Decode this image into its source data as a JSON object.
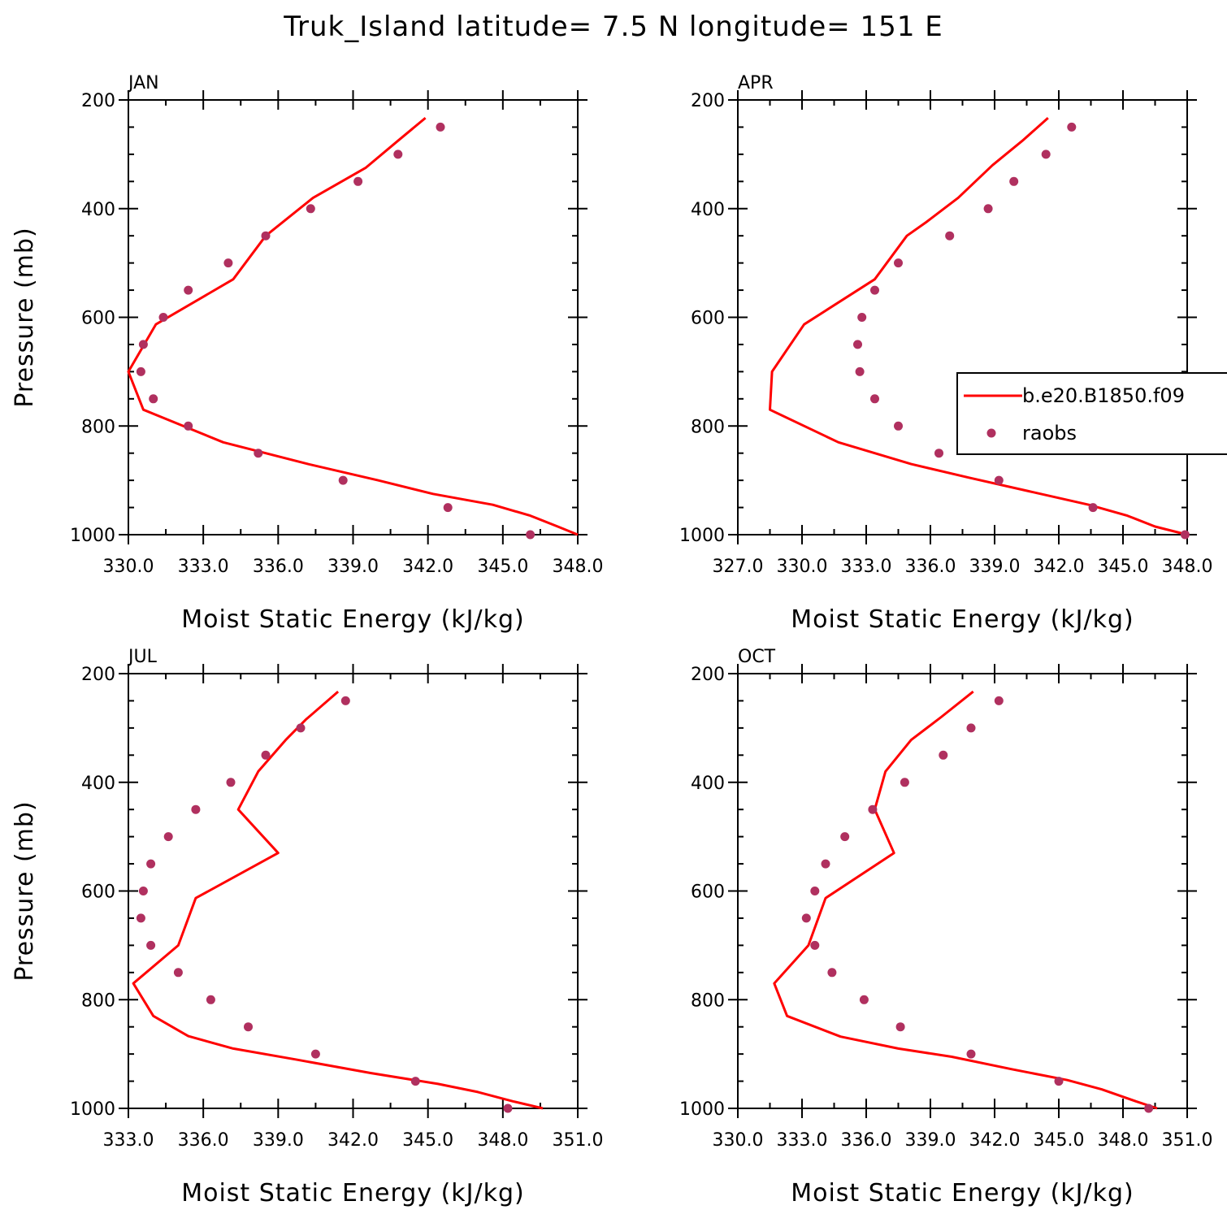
{
  "title": "Truk_Island  latitude= 7.5 N longitude= 151 E",
  "colors": {
    "model_line": "#ff0000",
    "obs_marker": "#b0305f",
    "axes": "#000000"
  },
  "legend": {
    "entries": [
      "b.e20.B1850.f09",
      "raobs"
    ]
  },
  "chart_data": [
    {
      "type": "line",
      "panel": "JAN",
      "xlabel": "Moist Static Energy (kJ/kg)",
      "ylabel": "Pressure (mb)",
      "xlim": [
        330,
        348
      ],
      "ylim": [
        1000,
        200
      ],
      "xticks": [
        330,
        333,
        336,
        339,
        342,
        345,
        348
      ],
      "xtick_labels": [
        "330.0",
        "333.0",
        "336.0",
        "339.0",
        "342.0",
        "345.0",
        "348.0"
      ],
      "yticks": [
        200,
        400,
        600,
        800,
        1000
      ],
      "series": [
        {
          "name": "b.e20.B1850.f09",
          "points": [
            [
              341.9,
              233
            ],
            [
              340.8,
              275
            ],
            [
              339.5,
              325
            ],
            [
              337.4,
              380
            ],
            [
              335.5,
              450
            ],
            [
              334.2,
              530
            ],
            [
              331.1,
              613
            ],
            [
              330.0,
              700
            ],
            [
              330.6,
              770
            ],
            [
              333.8,
              830
            ],
            [
              337.2,
              870
            ],
            [
              340.0,
              900
            ],
            [
              342.2,
              925
            ],
            [
              344.6,
              945
            ],
            [
              346.1,
              965
            ],
            [
              347.2,
              985
            ],
            [
              348.0,
              1000
            ]
          ]
        },
        {
          "name": "raobs",
          "points": [
            [
              342.5,
              250
            ],
            [
              340.8,
              300
            ],
            [
              339.2,
              350
            ],
            [
              337.3,
              400
            ],
            [
              335.5,
              450
            ],
            [
              334.0,
              500
            ],
            [
              332.4,
              550
            ],
            [
              331.4,
              600
            ],
            [
              330.6,
              650
            ],
            [
              330.5,
              700
            ],
            [
              331.0,
              750
            ],
            [
              332.4,
              800
            ],
            [
              335.2,
              850
            ],
            [
              338.6,
              900
            ],
            [
              342.8,
              950
            ],
            [
              346.1,
              1000
            ]
          ]
        }
      ]
    },
    {
      "type": "line",
      "panel": "APR",
      "xlabel": "Moist Static Energy (kJ/kg)",
      "ylabel": "",
      "xlim": [
        327,
        348
      ],
      "ylim": [
        1000,
        200
      ],
      "xticks": [
        327,
        330,
        333,
        336,
        339,
        342,
        345,
        348
      ],
      "xtick_labels": [
        "327.0",
        "330.0",
        "333.0",
        "336.0",
        "339.0",
        "342.0",
        "345.0",
        "348.0"
      ],
      "yticks": [
        200,
        400,
        600,
        800,
        1000
      ],
      "series": [
        {
          "name": "b.e20.B1850.f09",
          "points": [
            [
              341.5,
              233
            ],
            [
              340.3,
              275
            ],
            [
              338.9,
              320
            ],
            [
              337.3,
              380
            ],
            [
              335.8,
              425
            ],
            [
              334.9,
              450
            ],
            [
              333.4,
              530
            ],
            [
              330.1,
              613
            ],
            [
              328.6,
              700
            ],
            [
              328.5,
              770
            ],
            [
              331.7,
              830
            ],
            [
              335.1,
              870
            ],
            [
              337.8,
              895
            ],
            [
              340.6,
              920
            ],
            [
              343.4,
              945
            ],
            [
              345.2,
              965
            ],
            [
              346.5,
              985
            ],
            [
              348.0,
              1000
            ]
          ]
        },
        {
          "name": "raobs",
          "points": [
            [
              342.6,
              250
            ],
            [
              341.4,
              300
            ],
            [
              339.9,
              350
            ],
            [
              338.7,
              400
            ],
            [
              336.9,
              450
            ],
            [
              334.5,
              500
            ],
            [
              333.4,
              550
            ],
            [
              332.8,
              600
            ],
            [
              332.6,
              650
            ],
            [
              332.7,
              700
            ],
            [
              333.4,
              750
            ],
            [
              334.5,
              800
            ],
            [
              336.4,
              850
            ],
            [
              339.2,
              900
            ],
            [
              343.6,
              950
            ],
            [
              347.9,
              1000
            ]
          ]
        }
      ]
    },
    {
      "type": "line",
      "panel": "JUL",
      "xlabel": "Moist Static Energy (kJ/kg)",
      "ylabel": "Pressure (mb)",
      "xlim": [
        333,
        351
      ],
      "ylim": [
        1000,
        200
      ],
      "xticks": [
        333,
        336,
        339,
        342,
        345,
        348,
        351
      ],
      "xtick_labels": [
        "333.0",
        "336.0",
        "339.0",
        "342.0",
        "345.0",
        "348.0",
        "351.0"
      ],
      "yticks": [
        200,
        400,
        600,
        800,
        1000
      ],
      "series": [
        {
          "name": "b.e20.B1850.f09",
          "points": [
            [
              341.4,
              233
            ],
            [
              340.1,
              285
            ],
            [
              339.3,
              322
            ],
            [
              338.2,
              380
            ],
            [
              337.4,
              450
            ],
            [
              339.0,
              530
            ],
            [
              335.7,
              613
            ],
            [
              335.0,
              700
            ],
            [
              333.2,
              770
            ],
            [
              334.0,
              830
            ],
            [
              335.4,
              867
            ],
            [
              337.2,
              890
            ],
            [
              339.7,
              910
            ],
            [
              342.7,
              935
            ],
            [
              345.4,
              955
            ],
            [
              347.0,
              970
            ],
            [
              348.4,
              987
            ],
            [
              349.6,
              1000
            ]
          ]
        },
        {
          "name": "raobs",
          "points": [
            [
              341.7,
              250
            ],
            [
              339.9,
              300
            ],
            [
              338.5,
              350
            ],
            [
              337.1,
              400
            ],
            [
              335.7,
              450
            ],
            [
              334.6,
              500
            ],
            [
              333.9,
              550
            ],
            [
              333.6,
              600
            ],
            [
              333.5,
              650
            ],
            [
              333.9,
              700
            ],
            [
              335.0,
              750
            ],
            [
              336.3,
              800
            ],
            [
              337.8,
              850
            ],
            [
              340.5,
              900
            ],
            [
              344.5,
              950
            ],
            [
              348.2,
              1000
            ]
          ]
        }
      ]
    },
    {
      "type": "line",
      "panel": "OCT",
      "xlabel": "Moist Static Energy (kJ/kg)",
      "ylabel": "",
      "xlim": [
        330,
        351
      ],
      "ylim": [
        1000,
        200
      ],
      "xticks": [
        330,
        333,
        336,
        339,
        342,
        345,
        348,
        351
      ],
      "xtick_labels": [
        "330.0",
        "333.0",
        "336.0",
        "339.0",
        "342.0",
        "345.0",
        "348.0",
        "351.0"
      ],
      "yticks": [
        200,
        400,
        600,
        800,
        1000
      ],
      "series": [
        {
          "name": "b.e20.B1850.f09",
          "points": [
            [
              341.0,
              233
            ],
            [
              339.5,
              280
            ],
            [
              338.1,
              322
            ],
            [
              336.9,
              380
            ],
            [
              336.4,
              450
            ],
            [
              337.3,
              530
            ],
            [
              334.1,
              613
            ],
            [
              333.3,
              700
            ],
            [
              331.7,
              770
            ],
            [
              332.3,
              830
            ],
            [
              334.8,
              868
            ],
            [
              337.5,
              890
            ],
            [
              340.0,
              905
            ],
            [
              342.8,
              928
            ],
            [
              345.4,
              948
            ],
            [
              347.0,
              965
            ],
            [
              348.6,
              987
            ],
            [
              349.6,
              1000
            ]
          ]
        },
        {
          "name": "raobs",
          "points": [
            [
              342.2,
              250
            ],
            [
              340.9,
              300
            ],
            [
              339.6,
              350
            ],
            [
              337.8,
              400
            ],
            [
              336.3,
              450
            ],
            [
              335.0,
              500
            ],
            [
              334.1,
              550
            ],
            [
              333.6,
              600
            ],
            [
              333.2,
              650
            ],
            [
              333.6,
              700
            ],
            [
              334.4,
              750
            ],
            [
              335.9,
              800
            ],
            [
              337.6,
              850
            ],
            [
              340.9,
              900
            ],
            [
              345.0,
              950
            ],
            [
              349.2,
              1000
            ]
          ]
        }
      ]
    }
  ]
}
